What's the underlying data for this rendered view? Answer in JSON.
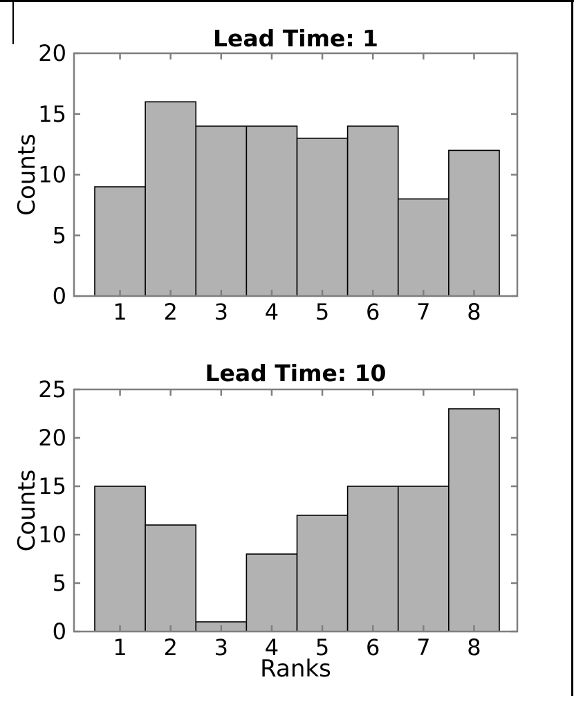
{
  "figure": {
    "background": "#ffffff",
    "frame_color": "#000000"
  },
  "chart_data": [
    {
      "type": "bar",
      "title": "Lead Time: 1",
      "xlabel": "",
      "ylabel": "Counts",
      "categories": [
        "1",
        "2",
        "3",
        "4",
        "5",
        "6",
        "7",
        "8"
      ],
      "values": [
        9,
        16,
        14,
        14,
        13,
        14,
        8,
        12
      ],
      "ylim": [
        0,
        20
      ],
      "yticks": [
        0,
        5,
        10,
        15,
        20
      ],
      "bar_span_x": [
        0.5,
        8.5
      ],
      "grid": false,
      "legend_position": "none",
      "bar_fill": "#b2b2b2",
      "bar_edge": "#000000",
      "axis_color": "#7f7f7f",
      "text_color": "#000000"
    },
    {
      "type": "bar",
      "title": "Lead Time: 10",
      "xlabel": "Ranks",
      "ylabel": "Counts",
      "categories": [
        "1",
        "2",
        "3",
        "4",
        "5",
        "6",
        "7",
        "8"
      ],
      "values": [
        15,
        11,
        1,
        8,
        12,
        15,
        15,
        23
      ],
      "ylim": [
        0,
        25
      ],
      "yticks": [
        0,
        5,
        10,
        15,
        20,
        25
      ],
      "bar_span_x": [
        0.5,
        8.5
      ],
      "grid": false,
      "legend_position": "none",
      "bar_fill": "#b2b2b2",
      "bar_edge": "#000000",
      "axis_color": "#7f7f7f",
      "text_color": "#000000"
    }
  ]
}
